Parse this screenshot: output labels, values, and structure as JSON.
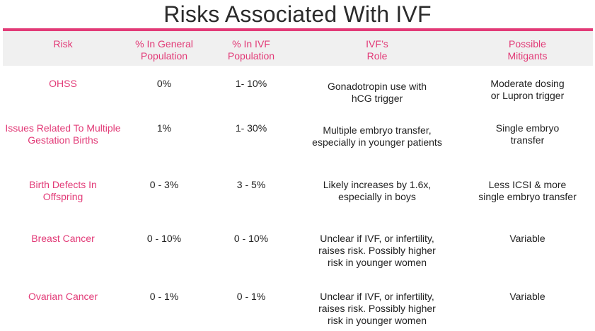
{
  "title": "Risks Associated With IVF",
  "headers": [
    "Risk",
    "% In General\nPopulation",
    "% In IVF\nPopulation",
    "IVF’s\nRole",
    "Possible\nMitigants"
  ],
  "rows": [
    {
      "risk": "OHSS",
      "general": "0%",
      "ivf": "1- 10%",
      "role": "Gonadotropin use with\nhCG trigger",
      "mitigants": "Moderate dosing\nor Lupron trigger"
    },
    {
      "risk": "Issues Related To Multiple\nGestation Births",
      "general": "1%",
      "ivf": "1- 30%",
      "role": "Multiple embryo transfer,\nespecially in younger patients",
      "mitigants": "Single embryo\ntransfer"
    },
    {
      "risk": "Birth Defects In\nOffspring",
      "general": "0 - 3%",
      "ivf": "3 - 5%",
      "role": "Likely increases by 1.6x,\nespecially in boys",
      "mitigants": "Less ICSI & more\nsingle embryo transfer"
    },
    {
      "risk": "Breast Cancer",
      "general": "0 - 10%",
      "ivf": "0 - 10%",
      "role": "Unclear if IVF, or infertility,\nraises risk. Possibly higher\nrisk in younger women",
      "mitigants": "Variable"
    },
    {
      "risk": "Ovarian Cancer",
      "general": "0 - 1%",
      "ivf": "0 - 1%",
      "role": "Unclear if IVF, or infertility,\nraises risk. Possibly higher\nrisk in younger women",
      "mitigants": "Variable"
    }
  ]
}
